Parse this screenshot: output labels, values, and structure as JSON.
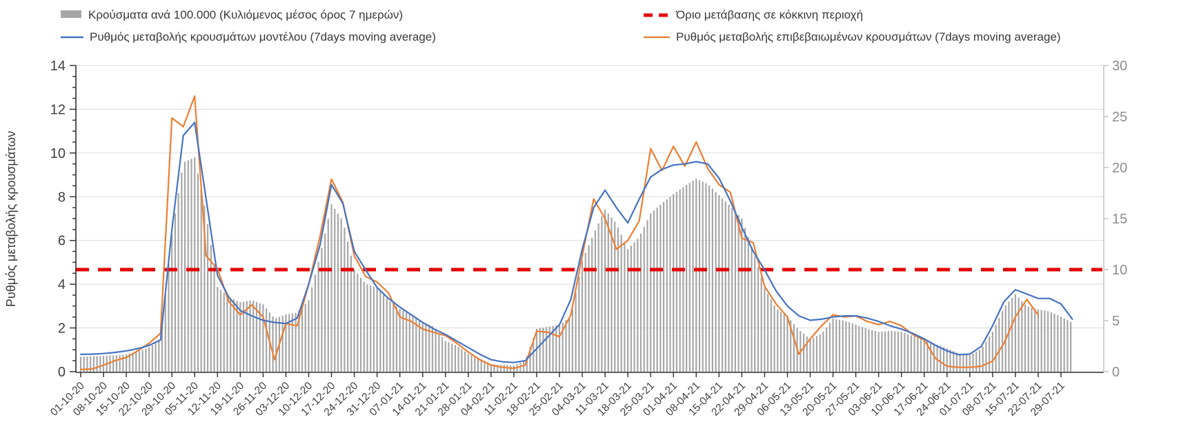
{
  "legend": {
    "cases_label": "Κρούσματα ανά 100.000 (Κυλιόμενος μέσος όρος 7 ημερών)",
    "threshold_label": "Όριο μετάβασης σε κόκκινη περιοχή",
    "model_label": "Ρυθμός μεταβολής κρουσμάτων μοντέλου (7days moving average)",
    "confirmed_label": "Ρυθμός μεταβολής επιβεβαιωμένων κρουσμάτων (7days moving average)"
  },
  "colors": {
    "bars": "#a6a6a6",
    "model_line": "#4472c4",
    "confirmed_line": "#ed7d31",
    "threshold": "#e60000",
    "gridline": "#d9d9d9",
    "axis": "#2b2b2b",
    "right_axis": "#bfbfbf",
    "left_tick_text": "#404040",
    "right_tick_text": "#8c8c8c",
    "x_tick_text": "#404040"
  },
  "chart_data": {
    "type": "bar+line combo",
    "title": "",
    "left_axis": {
      "label": "Ρυθμός μεταβολής κρουσμάτων",
      "min": 0,
      "max": 14,
      "ticks": [
        0,
        2,
        4,
        6,
        8,
        10,
        12,
        14
      ],
      "minor_tick_step": 0.5,
      "gridlines_at": [
        2,
        4,
        6,
        8,
        10,
        12,
        14
      ]
    },
    "right_axis": {
      "label": "",
      "min": 0,
      "max": 30,
      "ticks": [
        0,
        5,
        10,
        15,
        20,
        25,
        30
      ]
    },
    "threshold": {
      "value_right_axis": 10,
      "name": "Όριο μετάβασης σε κόκκινη περιοχή"
    },
    "x_start_date": "01-10-20",
    "x_tick_labels": [
      "01-10-20",
      "08-10-20",
      "15-10-20",
      "22-10-20",
      "29-10-20",
      "05-11-20",
      "12-11-20",
      "19-11-20",
      "26-11-20",
      "03-12-20",
      "10-12-20",
      "17-12-20",
      "24-12-20",
      "31-12-20",
      "07-01-21",
      "14-01-21",
      "21-01-21",
      "28-01-21",
      "04-02-21",
      "11-02-21",
      "18-02-21",
      "25-02-21",
      "04-03-21",
      "11-03-21",
      "18-03-21",
      "25-03-21",
      "01-04-21",
      "08-04-21",
      "15-04-21",
      "22-04-21",
      "29-04-21",
      "06-05-21",
      "13-05-21",
      "20-05-21",
      "27-05-21",
      "03-06-21",
      "10-06-21",
      "17-06-21",
      "24-06-21",
      "01-07-21",
      "08-07-21",
      "15-07-21",
      "22-07-21",
      "29-07-21"
    ],
    "sample_interval_days": 3.5,
    "series": [
      {
        "name": "Κρούσματα ανά 100.000 (Κυλιόμενος μέσος όρος 7 ημερών)",
        "type": "bar",
        "axis": "right",
        "values": [
          1.45,
          1.5,
          1.55,
          1.6,
          1.7,
          1.95,
          2.4,
          3.1,
          13.5,
          20.5,
          21.0,
          15.5,
          8.3,
          7.3,
          6.8,
          7.0,
          6.6,
          5.2,
          5.6,
          5.8,
          7.0,
          11.4,
          16.4,
          14.8,
          10.0,
          8.6,
          8.2,
          7.0,
          6.15,
          5.6,
          4.9,
          4.4,
          3.0,
          2.55,
          1.75,
          1.3,
          0.75,
          0.65,
          0.6,
          1.1,
          4.2,
          4.4,
          4.6,
          5.4,
          10.9,
          13.5,
          15.9,
          14.5,
          12.0,
          13.2,
          15.5,
          16.5,
          17.4,
          18.2,
          18.9,
          18.4,
          17.3,
          16.2,
          15.0,
          11.8,
          8.2,
          6.2,
          5.4,
          4.1,
          3.2,
          3.7,
          5.2,
          5.0,
          4.6,
          4.2,
          3.9,
          4.0,
          3.9,
          3.5,
          3.3,
          2.7,
          2.3,
          1.8,
          1.6,
          2.2,
          3.9,
          6.3,
          7.6,
          6.4,
          6.1,
          5.9,
          5.4,
          4.8
        ]
      },
      {
        "name": "Ρυθμός μεταβολής κρουσμάτων μοντέλου (7days moving average)",
        "type": "line",
        "axis": "left",
        "values": [
          0.79,
          0.8,
          0.83,
          0.88,
          0.95,
          1.05,
          1.2,
          1.45,
          6.5,
          10.8,
          11.4,
          7.9,
          4.4,
          3.4,
          2.8,
          2.55,
          2.35,
          2.25,
          2.2,
          2.45,
          4.0,
          5.8,
          8.55,
          7.7,
          5.5,
          4.65,
          3.85,
          3.35,
          2.95,
          2.6,
          2.25,
          1.95,
          1.7,
          1.4,
          1.1,
          0.8,
          0.55,
          0.45,
          0.42,
          0.5,
          1.05,
          1.6,
          2.15,
          3.3,
          5.6,
          7.5,
          8.3,
          7.5,
          6.8,
          7.9,
          8.9,
          9.25,
          9.45,
          9.5,
          9.6,
          9.5,
          8.85,
          7.8,
          6.6,
          5.5,
          4.65,
          3.7,
          3.0,
          2.55,
          2.35,
          2.4,
          2.5,
          2.55,
          2.55,
          2.45,
          2.3,
          2.1,
          1.95,
          1.75,
          1.5,
          1.2,
          0.95,
          0.78,
          0.8,
          1.15,
          2.1,
          3.2,
          3.75,
          3.55,
          3.35,
          3.35,
          3.1,
          2.4
        ]
      },
      {
        "name": "Ρυθμός μεταβολής επιβεβαιωμένων κρουσμάτων (7days moving average)",
        "type": "line",
        "axis": "left",
        "values": [
          0.1,
          0.12,
          0.3,
          0.5,
          0.65,
          0.95,
          1.3,
          1.75,
          11.6,
          11.2,
          12.6,
          5.3,
          4.7,
          3.2,
          2.6,
          3.05,
          2.5,
          0.55,
          2.2,
          2.1,
          4.0,
          6.2,
          8.8,
          7.75,
          5.3,
          4.35,
          4.1,
          3.6,
          2.5,
          2.3,
          1.95,
          1.8,
          1.65,
          1.3,
          0.9,
          0.55,
          0.3,
          0.2,
          0.15,
          0.3,
          1.85,
          1.8,
          1.6,
          2.6,
          5.3,
          7.9,
          7.0,
          5.6,
          6.0,
          6.9,
          10.2,
          9.2,
          10.3,
          9.4,
          10.5,
          9.3,
          8.55,
          8.2,
          6.1,
          5.9,
          3.9,
          3.1,
          2.5,
          0.8,
          1.5,
          2.1,
          2.6,
          2.5,
          2.55,
          2.3,
          2.15,
          2.3,
          2.1,
          1.7,
          1.45,
          0.6,
          0.25,
          0.2,
          0.2,
          0.25,
          0.48,
          1.3,
          2.5,
          3.3,
          2.6
        ]
      }
    ]
  }
}
